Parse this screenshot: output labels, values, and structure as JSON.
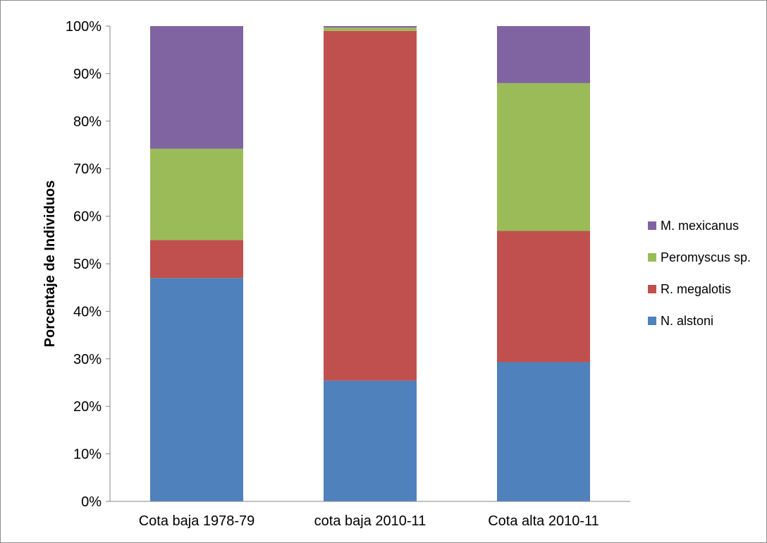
{
  "chart_data": {
    "type": "bar",
    "stacked": true,
    "percent_stacked": true,
    "categories": [
      "Cota baja 1978-79",
      "cota baja 2010-11",
      "Cota alta 2010-11"
    ],
    "series": [
      {
        "name": "N. alstoni",
        "color": "#4f81bd",
        "values": [
          47,
          25.4,
          29.3
        ]
      },
      {
        "name": "R. megalotis",
        "color": "#c0504d",
        "values": [
          8,
          73.6,
          27.6
        ]
      },
      {
        "name": "Peromyscus sp.",
        "color": "#9bbb59",
        "values": [
          19.2,
          0.7,
          31.1
        ]
      },
      {
        "name": "M. mexicanus",
        "color": "#8064a2",
        "values": [
          25.8,
          0.3,
          12
        ]
      }
    ],
    "ylabel": "Porcentaje de Individuos",
    "ylim": [
      0,
      100
    ],
    "yticks": [
      "0%",
      "10%",
      "20%",
      "30%",
      "40%",
      "50%",
      "60%",
      "70%",
      "80%",
      "90%",
      "100%"
    ],
    "grid": false,
    "legend_position": "right"
  }
}
